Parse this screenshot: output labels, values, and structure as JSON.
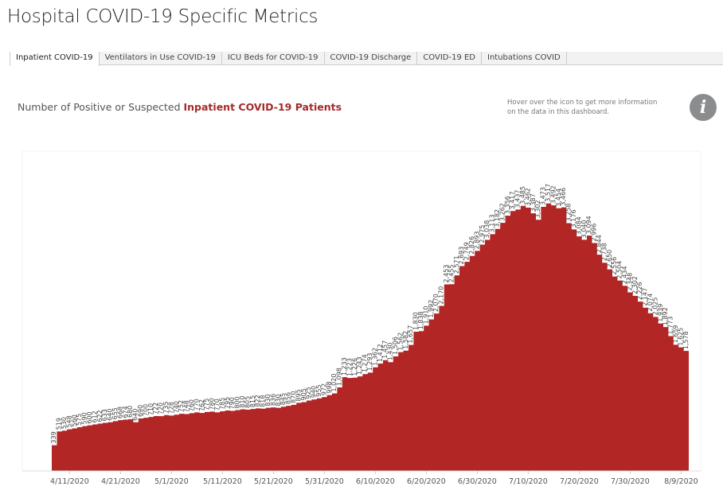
{
  "header": {
    "title": "Hospital COVID-19 Specific Metrics"
  },
  "tabs": [
    {
      "label": "Inpatient COVID-19",
      "active": true
    },
    {
      "label": "Ventilators in Use COVID-19"
    },
    {
      "label": "ICU Beds for COVID-19"
    },
    {
      "label": "COVID-19 Discharge"
    },
    {
      "label": "COVID-19 ED"
    },
    {
      "label": "Intubations COVID"
    }
  ],
  "subtitle": {
    "prefix": "Number of Positive or Suspected ",
    "highlight": "Inpatient COVID-19 Patients"
  },
  "info": {
    "hover_text": "Hover over the icon to get more information on the data in this dashboard.",
    "icon": "info-icon",
    "glyph": "i"
  },
  "colors": {
    "area": "#b22626",
    "highlight": "#a52a2a"
  },
  "chart_data": {
    "type": "area",
    "title": "",
    "xlabel": "",
    "ylabel": "",
    "grid": false,
    "x_ticks": [
      "4/11/2020",
      "4/21/2020",
      "5/1/2020",
      "5/11/2020",
      "5/21/2020",
      "5/31/2020",
      "6/10/2020",
      "6/20/2020",
      "6/30/2020",
      "7/10/2020",
      "7/20/2020",
      "7/30/2020",
      "8/9/2020"
    ],
    "x": [
      "4/8/2020",
      "4/9/2020",
      "4/10/2020",
      "4/11/2020",
      "4/12/2020",
      "4/13/2020",
      "4/14/2020",
      "4/15/2020",
      "4/16/2020",
      "4/17/2020",
      "4/18/2020",
      "4/19/2020",
      "4/20/2020",
      "4/21/2020",
      "4/22/2020",
      "4/23/2020",
      "4/24/2020",
      "4/25/2020",
      "4/26/2020",
      "4/27/2020",
      "4/28/2020",
      "4/29/2020",
      "4/30/2020",
      "5/1/2020",
      "5/2/2020",
      "5/3/2020",
      "5/4/2020",
      "5/5/2020",
      "5/6/2020",
      "5/7/2020",
      "5/8/2020",
      "5/9/2020",
      "5/10/2020",
      "5/11/2020",
      "5/12/2020",
      "5/13/2020",
      "5/14/2020",
      "5/15/2020",
      "5/16/2020",
      "5/17/2020",
      "5/18/2020",
      "5/19/2020",
      "5/20/2020",
      "5/21/2020",
      "5/22/2020",
      "5/23/2020",
      "5/24/2020",
      "5/25/2020",
      "5/26/2020",
      "5/27/2020",
      "5/28/2020",
      "5/29/2020",
      "5/30/2020",
      "5/31/2020",
      "6/1/2020",
      "6/2/2020",
      "6/3/2020",
      "6/4/2020",
      "6/5/2020",
      "6/6/2020",
      "6/7/2020",
      "6/8/2020",
      "6/9/2020",
      "6/10/2020",
      "6/11/2020",
      "6/12/2020",
      "6/13/2020",
      "6/14/2020",
      "6/15/2020",
      "6/16/2020",
      "6/17/2020",
      "6/18/2020",
      "6/19/2020",
      "6/20/2020",
      "6/21/2020",
      "6/22/2020",
      "6/23/2020",
      "6/24/2020",
      "6/25/2020",
      "6/26/2020",
      "6/27/2020",
      "6/28/2020",
      "6/29/2020",
      "6/30/2020",
      "7/1/2020",
      "7/2/2020",
      "7/3/2020",
      "7/4/2020",
      "7/5/2020",
      "7/6/2020",
      "7/7/2020",
      "7/8/2020",
      "7/9/2020",
      "7/10/2020",
      "7/11/2020",
      "7/12/2020",
      "7/13/2020",
      "7/14/2020",
      "7/15/2020",
      "7/16/2020",
      "7/17/2020",
      "7/18/2020",
      "7/19/2020",
      "7/20/2020",
      "7/21/2020",
      "7/22/2020",
      "7/23/2020",
      "7/24/2020",
      "7/25/2020",
      "7/26/2020",
      "7/27/2020",
      "7/28/2020",
      "7/29/2020",
      "7/30/2020",
      "7/31/2020",
      "8/1/2020",
      "8/2/2020",
      "8/3/2020",
      "8/4/2020",
      "8/5/2020",
      "8/6/2020",
      "8/7/2020",
      "8/8/2020",
      "8/9/2020",
      "8/10/2020"
    ],
    "values": [
      339,
      519,
      530,
      548,
      560,
      575,
      590,
      600,
      612,
      622,
      633,
      640,
      655,
      668,
      674,
      680,
      640,
      690,
      700,
      710,
      722,
      720,
      735,
      728,
      740,
      752,
      748,
      760,
      770,
      762,
      775,
      780,
      770,
      785,
      795,
      790,
      800,
      810,
      805,
      815,
      822,
      818,
      830,
      836,
      830,
      845,
      856,
      870,
      895,
      905,
      925,
      940,
      955,
      972,
      998,
      1020,
      1098,
      1233,
      1223,
      1226,
      1243,
      1274,
      1293,
      1362,
      1412,
      1457,
      1430,
      1506,
      1562,
      1582,
      1657,
      1830,
      1838,
      1910,
      1992,
      2070,
      2170,
      2453,
      2455,
      2571,
      2693,
      2749,
      2826,
      2893,
      2975,
      3038,
      3113,
      3182,
      3262,
      3356,
      3417,
      3437,
      3485,
      3462,
      3387,
      3302,
      3473,
      3517,
      3492,
      3454,
      3466,
      3258,
      3176,
      3084,
      3040,
      3094,
      2996,
      2844,
      2738,
      2650,
      2556,
      2504,
      2434,
      2348,
      2302,
      2226,
      2147,
      2074,
      2025,
      1939,
      1892,
      1773,
      1659,
      1625,
      1578
    ],
    "ylim": [
      0,
      4100
    ]
  }
}
